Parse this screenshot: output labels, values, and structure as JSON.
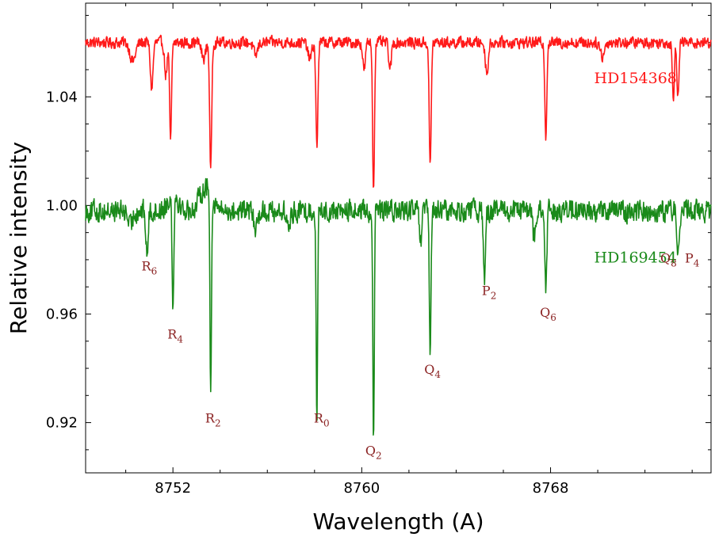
{
  "chart_data": {
    "type": "line",
    "xlabel": "Wavelength (A)",
    "ylabel": "Relative intensity",
    "xlim": [
      8748.3,
      8774.8
    ],
    "ylim": [
      0.9015,
      1.0745
    ],
    "x_ticks": [
      8752,
      8760,
      8768
    ],
    "y_ticks": [
      0.92,
      0.96,
      1.0,
      1.04
    ],
    "x_tick_labels": [
      "8752",
      "8760",
      "8768"
    ],
    "y_tick_labels": [
      "0.92",
      "0.96",
      "1.00",
      "1.04"
    ],
    "grid": false,
    "series": [
      {
        "name": "HD154368",
        "color": "#ff1a1a",
        "baseline": 1.06,
        "noise": 0.0018,
        "lines": [
          {
            "x": 8750.3,
            "depth": 0.007,
            "width": 0.16
          },
          {
            "x": 8751.1,
            "depth": 0.017,
            "width": 0.08
          },
          {
            "x": 8751.7,
            "depth": 0.012,
            "width": 0.08
          },
          {
            "x": 8751.9,
            "depth": 0.036,
            "width": 0.06
          },
          {
            "x": 8753.3,
            "depth": 0.006,
            "width": 0.12
          },
          {
            "x": 8753.6,
            "depth": 0.048,
            "width": 0.06
          },
          {
            "x": 8755.5,
            "depth": 0.005,
            "width": 0.12
          },
          {
            "x": 8757.8,
            "depth": 0.006,
            "width": 0.12
          },
          {
            "x": 8758.1,
            "depth": 0.039,
            "width": 0.06
          },
          {
            "x": 8760.1,
            "depth": 0.01,
            "width": 0.08
          },
          {
            "x": 8760.5,
            "depth": 0.055,
            "width": 0.055
          },
          {
            "x": 8761.2,
            "depth": 0.01,
            "width": 0.08
          },
          {
            "x": 8762.9,
            "depth": 0.046,
            "width": 0.06
          },
          {
            "x": 8765.3,
            "depth": 0.011,
            "width": 0.09
          },
          {
            "x": 8767.8,
            "depth": 0.034,
            "width": 0.06
          },
          {
            "x": 8770.2,
            "depth": 0.005,
            "width": 0.12
          },
          {
            "x": 8773.2,
            "depth": 0.02,
            "width": 0.06
          },
          {
            "x": 8773.4,
            "depth": 0.02,
            "width": 0.06
          }
        ],
        "label": "HD154368",
        "label_x": 8771.6,
        "label_y": 1.045
      },
      {
        "name": "HD169454",
        "color": "#1a8a1a",
        "baseline": 0.998,
        "noise": 0.0034,
        "bumps": [
          {
            "x": 8752.0,
            "height": 0.006,
            "width": 0.3
          },
          {
            "x": 8753.4,
            "height": 0.009,
            "width": 0.35
          }
        ],
        "lines": [
          {
            "x": 8750.2,
            "depth": 0.006,
            "width": 0.12
          },
          {
            "x": 8750.9,
            "depth": 0.016,
            "width": 0.07
          },
          {
            "x": 8752.0,
            "depth": 0.041,
            "width": 0.05
          },
          {
            "x": 8753.6,
            "depth": 0.074,
            "width": 0.045
          },
          {
            "x": 8755.5,
            "depth": 0.006,
            "width": 0.12
          },
          {
            "x": 8756.9,
            "depth": 0.006,
            "width": 0.12
          },
          {
            "x": 8758.1,
            "depth": 0.075,
            "width": 0.045
          },
          {
            "x": 8760.5,
            "depth": 0.086,
            "width": 0.045
          },
          {
            "x": 8762.5,
            "depth": 0.012,
            "width": 0.07
          },
          {
            "x": 8762.9,
            "depth": 0.055,
            "width": 0.05
          },
          {
            "x": 8765.2,
            "depth": 0.025,
            "width": 0.06
          },
          {
            "x": 8767.3,
            "depth": 0.01,
            "width": 0.08
          },
          {
            "x": 8767.8,
            "depth": 0.03,
            "width": 0.06
          },
          {
            "x": 8773.4,
            "depth": 0.015,
            "width": 0.06
          }
        ],
        "label": "HD169454",
        "label_x": 8771.6,
        "label_y": 0.979
      }
    ],
    "annotations": [
      {
        "base": "R",
        "sub": "6",
        "x": 8751.0,
        "y": 0.976
      },
      {
        "base": "R",
        "sub": "4",
        "x": 8752.1,
        "y": 0.951
      },
      {
        "base": "R",
        "sub": "2",
        "x": 8753.7,
        "y": 0.92
      },
      {
        "base": "R",
        "sub": "0",
        "x": 8758.3,
        "y": 0.92
      },
      {
        "base": "Q",
        "sub": "2",
        "x": 8760.5,
        "y": 0.908
      },
      {
        "base": "Q",
        "sub": "4",
        "x": 8763.0,
        "y": 0.938
      },
      {
        "base": "P",
        "sub": "2",
        "x": 8765.4,
        "y": 0.967
      },
      {
        "base": "Q",
        "sub": "6",
        "x": 8767.9,
        "y": 0.959
      },
      {
        "base": "Q",
        "sub": "8",
        "x": 8773.0,
        "y": 0.979
      },
      {
        "base": "P",
        "sub": "4",
        "x": 8774.0,
        "y": 0.979
      }
    ],
    "colors": {
      "annotation": "#8b2323",
      "axis": "#000000"
    }
  }
}
